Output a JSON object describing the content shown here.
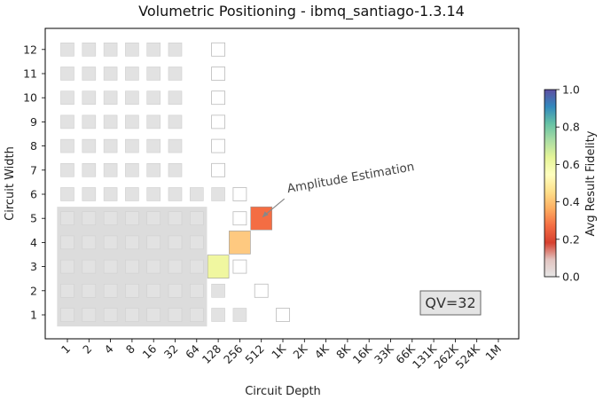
{
  "chart_data": {
    "type": "heatmap",
    "title": "Volumetric Positioning - ibmq_santiago-1.3.14",
    "xlabel": "Circuit Depth",
    "ylabel": "Circuit Width",
    "x_tick_labels": [
      "1",
      "2",
      "4",
      "8",
      "16",
      "32",
      "64",
      "128",
      "256",
      "512",
      "1K",
      "2K",
      "4K",
      "8K",
      "16K",
      "33K",
      "66K",
      "131K",
      "262K",
      "524K",
      "1M"
    ],
    "y_tick_labels": [
      "1",
      "2",
      "3",
      "4",
      "5",
      "6",
      "7",
      "8",
      "9",
      "10",
      "11",
      "12"
    ],
    "colorbar": {
      "label": "Avg Result Fidelity",
      "ticks": [
        "0.0",
        "0.2",
        "0.4",
        "0.6",
        "0.8",
        "1.0"
      ],
      "colormap": [
        "#e6e6e6",
        "#e2c4c0",
        "#d6402f",
        "#f46d43",
        "#fdae61",
        "#fee08b",
        "#ffffbf",
        "#e6f598",
        "#abdda4",
        "#66c2a5",
        "#3288bd",
        "#5e4fa2"
      ]
    },
    "qv_label": "QV=32",
    "qv_shade": {
      "max_depth_index": 6,
      "max_width": 5,
      "color": "#dcdcdc"
    },
    "background_grid": {
      "cell_color": "#e2e2e2",
      "filled_columns_per_width": {
        "1": 9,
        "2": 8,
        "3": 7,
        "4": 7,
        "5": 7,
        "6": 8,
        "7": 6,
        "8": 6,
        "9": 6,
        "10": 6,
        "11": 6,
        "12": 6
      },
      "outline_column_per_width": {
        "1": 10,
        "2": 9,
        "3": 8,
        "4": 8,
        "5": 8,
        "6": 8,
        "7": 7,
        "8": 7,
        "9": 7,
        "10": 7,
        "11": 7,
        "12": 7
      }
    },
    "points": [
      {
        "name": "",
        "depth_index": 7,
        "width": 3,
        "fidelity": 0.52,
        "color": "#f0f7a0"
      },
      {
        "name": "",
        "depth_index": 8,
        "width": 4,
        "fidelity": 0.38,
        "color": "#fec980"
      },
      {
        "name": "Amplitude Estimation",
        "depth_index": 9,
        "width": 5,
        "fidelity": 0.25,
        "color": "#f46d43"
      }
    ]
  }
}
